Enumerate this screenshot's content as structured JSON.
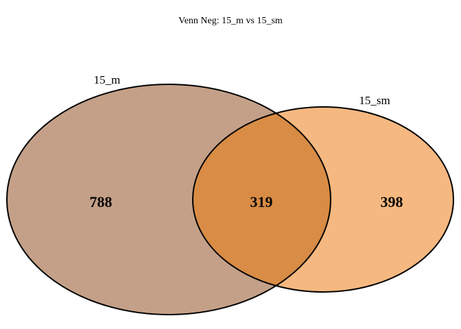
{
  "chart_data": {
    "type": "venn",
    "title": "Venn Neg: 15_m vs 15_sm",
    "sets": [
      {
        "name": "15_m",
        "only_count": "788",
        "color": "#C4A088"
      },
      {
        "name": "15_sm",
        "only_count": "398",
        "color": "#F5B880"
      }
    ],
    "intersection": {
      "count": "319",
      "color": "#D88C45"
    }
  }
}
